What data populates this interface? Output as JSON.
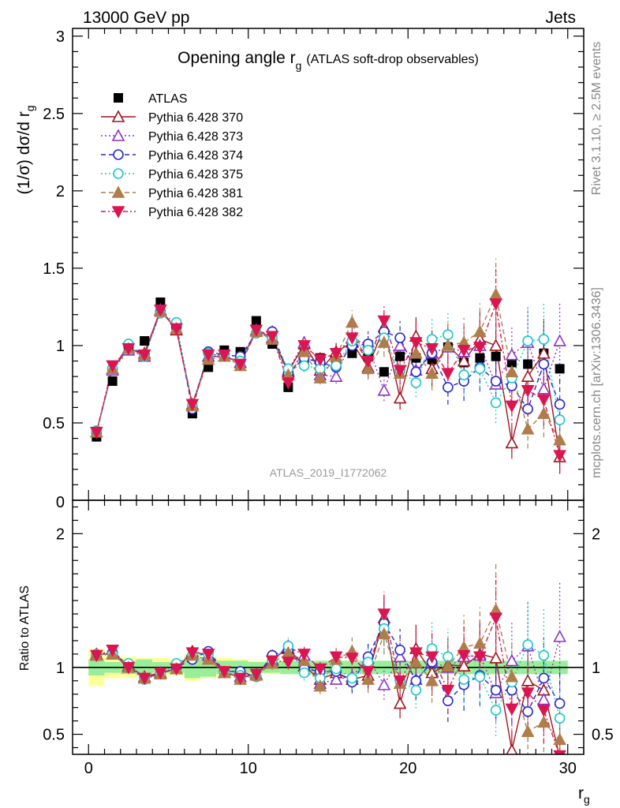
{
  "header": {
    "left": "13000 GeV pp",
    "right": "Jets"
  },
  "title": {
    "main": "Opening angle r",
    "main_sub": "g",
    "note": "(ATLAS soft-drop observables)"
  },
  "side_labels": {
    "rivet": "Rivet 3.1.10, ≥ 2.5M events",
    "mcplots": "mcplots.cern.ch [arXiv:1306.3436]"
  },
  "watermark": "ATLAS_2019_I1772062",
  "chart_data": [
    {
      "type": "line",
      "id": "main",
      "ylabel": "(1/σ) dσ/d r",
      "ylabel_sub": "g",
      "ylim": [
        0,
        3.05
      ],
      "xlim": [
        -1,
        31
      ],
      "yticks": [
        0.5,
        1,
        1.5,
        2,
        2.5,
        3
      ],
      "ytick_labels": [
        "0.5",
        "1",
        "1.5",
        "2",
        "2.5",
        "3"
      ],
      "bottom_label": "0",
      "legend_position": "top-left",
      "x": [
        0.5,
        1.5,
        2.5,
        3.5,
        4.5,
        5.5,
        6.5,
        7.5,
        8.5,
        9.5,
        10.5,
        11.5,
        12.5,
        13.5,
        14.5,
        15.5,
        16.5,
        17.5,
        18.5,
        19.5,
        20.5,
        21.5,
        22.5,
        23.5,
        24.5,
        25.5,
        26.5,
        27.5,
        28.5,
        29.5
      ],
      "series": [
        {
          "name": "ATLAS",
          "color": "#000000",
          "marker": "square",
          "values": [
            0.41,
            0.77,
            0.98,
            1.03,
            1.28,
            1.12,
            0.56,
            0.86,
            0.97,
            0.96,
            1.16,
            1.01,
            0.73,
            0.91,
            0.92,
            0.88,
            0.95,
            0.93,
            0.83,
            0.93,
            0.92,
            0.91,
            0.99,
            0.89,
            0.92,
            0.93,
            0.89,
            0.88,
            0.95,
            0.85
          ]
        },
        {
          "name": "Pythia 6.428 370",
          "color": "#a0141e",
          "marker": "triangle-open",
          "dash": "",
          "values": [
            0.44,
            0.85,
            0.98,
            0.95,
            1.23,
            1.1,
            0.62,
            0.93,
            0.93,
            0.89,
            1.1,
            1.05,
            0.83,
            1.01,
            0.84,
            0.96,
            1.02,
            0.86,
            1.12,
            0.66,
            1.06,
            0.85,
            1.0,
            0.9,
            1.04,
            1.0,
            0.37,
            0.8,
            0.95,
            0.28
          ]
        },
        {
          "name": "Pythia 6.428 373",
          "color": "#8c32c8",
          "marker": "triangle-open",
          "dash": "2,3",
          "values": [
            0.44,
            0.84,
            0.97,
            0.93,
            1.23,
            1.11,
            0.61,
            0.93,
            0.93,
            0.89,
            1.1,
            1.05,
            0.84,
            1.02,
            0.81,
            0.8,
            1.05,
            1.0,
            0.71,
            1.0,
            0.84,
            0.95,
            0.99,
            0.96,
            1.0,
            0.75,
            0.94,
            1.02,
            0.72,
            1.03
          ]
        },
        {
          "name": "Pythia 6.428 374",
          "color": "#2828c8",
          "marker": "circle-open",
          "dash": "6,4",
          "values": [
            0.44,
            0.85,
            1.0,
            0.94,
            1.22,
            1.12,
            0.59,
            0.96,
            0.94,
            0.93,
            1.08,
            1.09,
            0.82,
            0.92,
            0.89,
            0.86,
            1.0,
            1.01,
            1.09,
            1.05,
            0.83,
            0.95,
            0.73,
            0.77,
            0.86,
            0.77,
            0.74,
            0.59,
            0.88,
            0.62
          ]
        },
        {
          "name": "Pythia 6.428 375",
          "color": "#19c8c8",
          "marker": "circle-open",
          "dash": "2,3",
          "values": [
            0.45,
            0.85,
            1.01,
            0.93,
            1.21,
            1.15,
            0.61,
            0.95,
            0.93,
            0.9,
            1.08,
            1.05,
            0.85,
            0.87,
            0.85,
            0.87,
            1.03,
            0.97,
            1.05,
            0.84,
            0.76,
            1.04,
            1.07,
            0.81,
            0.85,
            0.63,
            0.79,
            1.03,
            1.04,
            0.52
          ]
        },
        {
          "name": "Pythia 6.428 381",
          "color": "#af7d4b",
          "marker": "triangle-filled",
          "dash": "6,4",
          "values": [
            0.44,
            0.85,
            0.98,
            0.94,
            1.22,
            1.11,
            0.61,
            0.91,
            0.93,
            0.87,
            1.09,
            1.04,
            0.81,
            0.96,
            0.79,
            0.93,
            1.15,
            0.85,
            1.02,
            0.82,
            0.95,
            0.82,
            1.0,
            1.02,
            1.09,
            1.33,
            0.83,
            0.46,
            0.56,
            0.39
          ]
        },
        {
          "name": "Pythia 6.428 382",
          "color": "#dc1450",
          "marker": "triangle-down-filled",
          "dash": "6,3,2,3",
          "values": [
            0.44,
            0.87,
            0.98,
            0.94,
            1.23,
            1.11,
            0.62,
            0.94,
            0.94,
            0.88,
            1.1,
            1.06,
            0.76,
            1.0,
            0.91,
            0.95,
            1.05,
            0.9,
            1.16,
            0.84,
            1.02,
            0.98,
            0.82,
            0.97,
            0.99,
            1.27,
            0.61,
            0.71,
            0.65,
            0.29
          ]
        }
      ]
    },
    {
      "type": "line",
      "id": "ratio",
      "ylabel": "Ratio to ATLAS",
      "xlabel": "r",
      "xlabel_sub": "g",
      "ylim": [
        0.35,
        2.25
      ],
      "xlim": [
        -1,
        31
      ],
      "yticks": [
        0.5,
        1,
        2
      ],
      "ytick_labels": [
        "0.5",
        "1",
        "2"
      ],
      "xticks": [
        0,
        10,
        20,
        30
      ],
      "xtick_labels": [
        "0",
        "10",
        "20",
        "30"
      ],
      "band_inner_half_width": [
        0.06,
        0.04,
        0.05,
        0.06,
        0.04,
        0.04,
        0.08,
        0.07,
        0.05,
        0.05,
        0.04,
        0.04,
        0.05,
        0.05,
        0.05,
        0.05,
        0.05,
        0.05,
        0.05,
        0.05,
        0.05,
        0.05,
        0.05,
        0.05,
        0.05,
        0.05,
        0.05,
        0.05,
        0.05,
        0.05
      ],
      "band_outer_half_width": [
        0.14,
        0.08,
        0.08,
        0.07,
        0.07,
        0.06,
        0.1,
        0.08,
        0.07,
        0.06,
        0.05,
        0.05,
        0.05,
        0.04,
        0.04,
        0.04,
        0.04,
        0.04,
        0.04,
        0.04,
        0.04,
        0.04,
        0.04,
        0.04,
        0.04,
        0.04,
        0.04,
        0.04,
        0.04,
        0.04
      ],
      "series": [
        {
          "name": "Pythia 6.428 370",
          "values": [
            1.1,
            1.1,
            1.01,
            0.93,
            0.96,
            0.99,
            1.12,
            1.09,
            0.96,
            0.93,
            0.95,
            1.06,
            1.14,
            1.01,
            0.91,
            0.96,
            0.91,
            0.94,
            1.37,
            0.73,
            1.14,
            0.96,
            1.02,
            1.01,
            1.1,
            1.07,
            0.38,
            0.9,
            0.83,
            0.33
          ]
        },
        {
          "name": "Pythia 6.428 373",
          "values": [
            1.09,
            1.1,
            1.0,
            0.92,
            0.96,
            0.99,
            1.1,
            1.09,
            0.96,
            0.93,
            0.95,
            1.05,
            1.16,
            1.09,
            0.88,
            0.91,
            0.93,
            1.07,
            0.87,
            1.08,
            0.91,
            1.04,
            1.0,
            1.08,
            1.09,
            0.81,
            1.05,
            1.16,
            0.76,
            1.23
          ]
        },
        {
          "name": "Pythia 6.428 374",
          "values": [
            1.09,
            1.11,
            1.02,
            0.92,
            0.95,
            1.0,
            1.06,
            1.12,
            0.97,
            0.97,
            0.93,
            1.09,
            1.13,
            0.99,
            0.97,
            0.97,
            0.89,
            1.08,
            1.33,
            1.13,
            0.9,
            1.04,
            0.75,
            0.87,
            0.94,
            0.83,
            0.83,
            0.67,
            0.92,
            0.73
          ]
        },
        {
          "name": "Pythia 6.428 375",
          "values": [
            1.1,
            1.1,
            1.03,
            0.91,
            0.95,
            1.03,
            1.09,
            1.1,
            0.96,
            0.94,
            0.93,
            1.05,
            1.16,
            0.96,
            0.92,
            0.99,
            0.92,
            1.04,
            1.29,
            0.9,
            0.83,
            1.14,
            1.08,
            0.91,
            0.93,
            0.68,
            0.89,
            1.17,
            1.09,
            0.62
          ]
        },
        {
          "name": "Pythia 6.428 381",
          "values": [
            1.09,
            1.1,
            1.0,
            0.92,
            0.95,
            0.99,
            1.09,
            1.06,
            0.96,
            0.91,
            0.94,
            1.03,
            1.11,
            1.05,
            0.86,
            1.06,
            1.12,
            0.91,
            1.25,
            0.88,
            1.04,
            0.9,
            1.01,
            1.15,
            1.18,
            1.43,
            0.93,
            0.52,
            0.59,
            0.46
          ]
        },
        {
          "name": "Pythia 6.428 382",
          "values": [
            1.09,
            1.13,
            1.0,
            0.92,
            0.96,
            0.99,
            1.11,
            1.1,
            0.97,
            0.92,
            0.95,
            1.05,
            1.04,
            1.1,
            0.99,
            1.08,
            1.07,
            0.97,
            1.4,
            0.9,
            1.11,
            1.08,
            0.83,
            1.09,
            1.08,
            1.37,
            0.69,
            0.81,
            0.68,
            0.34
          ]
        }
      ]
    }
  ]
}
